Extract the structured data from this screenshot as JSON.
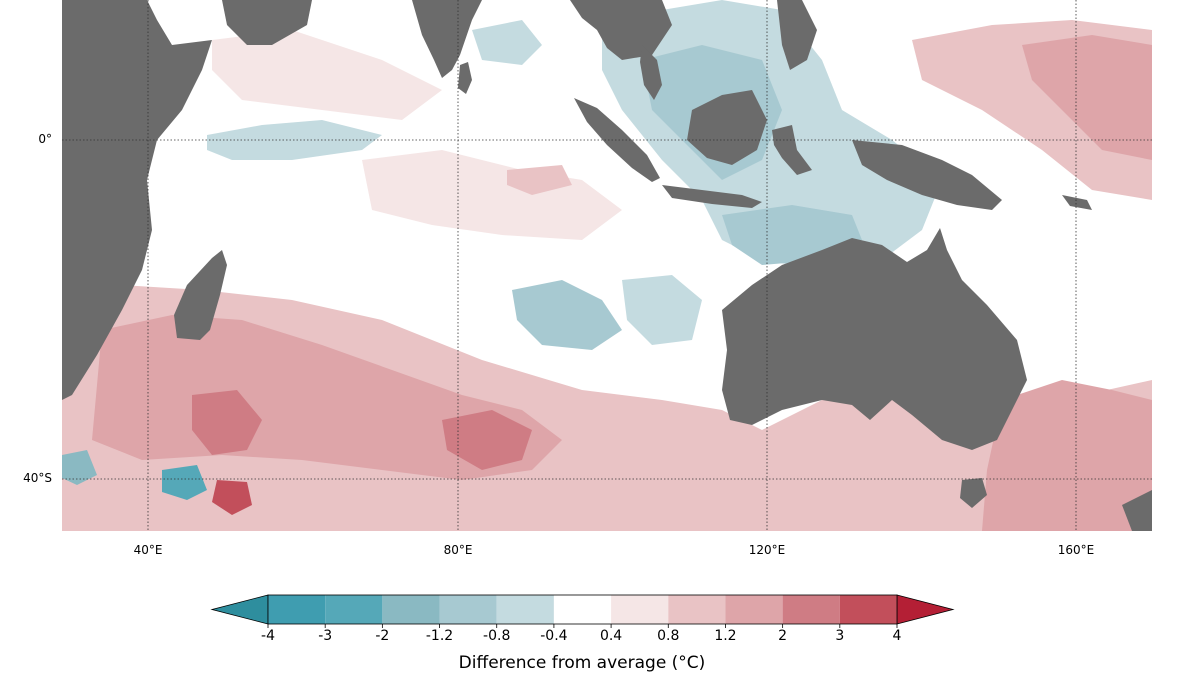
{
  "map": {
    "latitude_labels": [
      "0°",
      "40°S"
    ],
    "longitude_labels": [
      "40°E",
      "80°E",
      "120°E",
      "160°E"
    ],
    "land_color": "#6b6b6b",
    "ocean_base_color": "#ffffff",
    "gridline_style": "dotted",
    "features": [
      {
        "name": "Africa",
        "type": "land"
      },
      {
        "name": "Madagascar",
        "type": "land"
      },
      {
        "name": "India",
        "type": "land"
      },
      {
        "name": "Sri Lanka",
        "type": "land"
      },
      {
        "name": "Indochina",
        "type": "land"
      },
      {
        "name": "Sumatra",
        "type": "land"
      },
      {
        "name": "Java",
        "type": "land"
      },
      {
        "name": "Borneo",
        "type": "land"
      },
      {
        "name": "Sulawesi",
        "type": "land"
      },
      {
        "name": "Philippines",
        "type": "land"
      },
      {
        "name": "New Guinea",
        "type": "land"
      },
      {
        "name": "Australia",
        "type": "land"
      },
      {
        "name": "Tasmania",
        "type": "land"
      }
    ],
    "anomaly_regions": [
      {
        "area": "southwest Indian Ocean",
        "level": 2
      },
      {
        "area": "south-central Indian Ocean",
        "level": 2
      },
      {
        "area": "southern Indian Ocean band",
        "level": 1
      },
      {
        "area": "Maritime Continent",
        "level": -1
      },
      {
        "area": "north-west Australia",
        "level": -1
      },
      {
        "area": "western equatorial Pacific",
        "level": 1
      },
      {
        "area": "Tasman Sea",
        "level": 2
      }
    ]
  },
  "colorbar": {
    "title": "Difference from average (°C)",
    "tick_labels": [
      "-4",
      "-3",
      "-2",
      "-1.2",
      "-0.8",
      "-0.4",
      "0.4",
      "0.8",
      "1.2",
      "2",
      "3",
      "4"
    ],
    "bin_colors": [
      "#3f9db0",
      "#55a8b8",
      "#8ab9c2",
      "#a7c9d1",
      "#c4dbe0",
      "#ffffff",
      "#f5e6e6",
      "#e9c3c5",
      "#dea5a9",
      "#cf7c84",
      "#c24f5b"
    ],
    "low_extend_color": "#2e8e9e",
    "high_extend_color": "#b41f35"
  }
}
